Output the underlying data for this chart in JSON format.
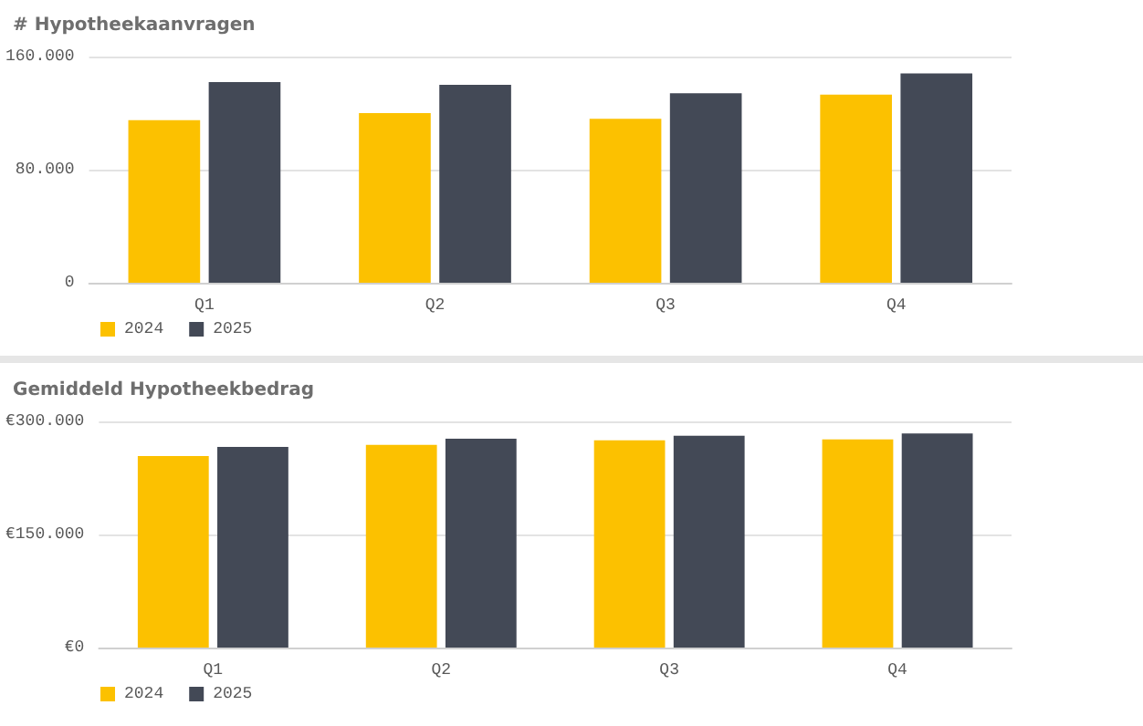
{
  "chart_data": [
    {
      "type": "bar",
      "title": "# Hypotheekaanvragen",
      "categories": [
        "Q1",
        "Q2",
        "Q3",
        "Q4"
      ],
      "series": [
        {
          "name": "2024",
          "color": "#fcc100",
          "values": [
            115000,
            120000,
            116000,
            133000
          ]
        },
        {
          "name": "2025",
          "color": "#434956",
          "values": [
            142000,
            140000,
            134000,
            148000
          ]
        }
      ],
      "ylim": [
        0,
        160000
      ],
      "yticks": [
        {
          "value": 0,
          "label": "0"
        },
        {
          "value": 80000,
          "label": "80.000"
        },
        {
          "value": 160000,
          "label": "160.000"
        }
      ],
      "grid": "y",
      "legend": "bottom left"
    },
    {
      "type": "bar",
      "title": "Gemiddeld Hypotheekbedrag",
      "categories": [
        "Q1",
        "Q2",
        "Q3",
        "Q4"
      ],
      "series": [
        {
          "name": "2024",
          "color": "#fcc100",
          "values": [
            254000,
            269000,
            275000,
            276000
          ]
        },
        {
          "name": "2025",
          "color": "#434956",
          "values": [
            266000,
            277000,
            281000,
            284000
          ]
        }
      ],
      "ylim": [
        0,
        300000
      ],
      "yticks": [
        {
          "value": 0,
          "label": "€0"
        },
        {
          "value": 150000,
          "label": "€150.000"
        },
        {
          "value": 300000,
          "label": "€300.000"
        }
      ],
      "grid": "y",
      "legend": "bottom left"
    }
  ]
}
